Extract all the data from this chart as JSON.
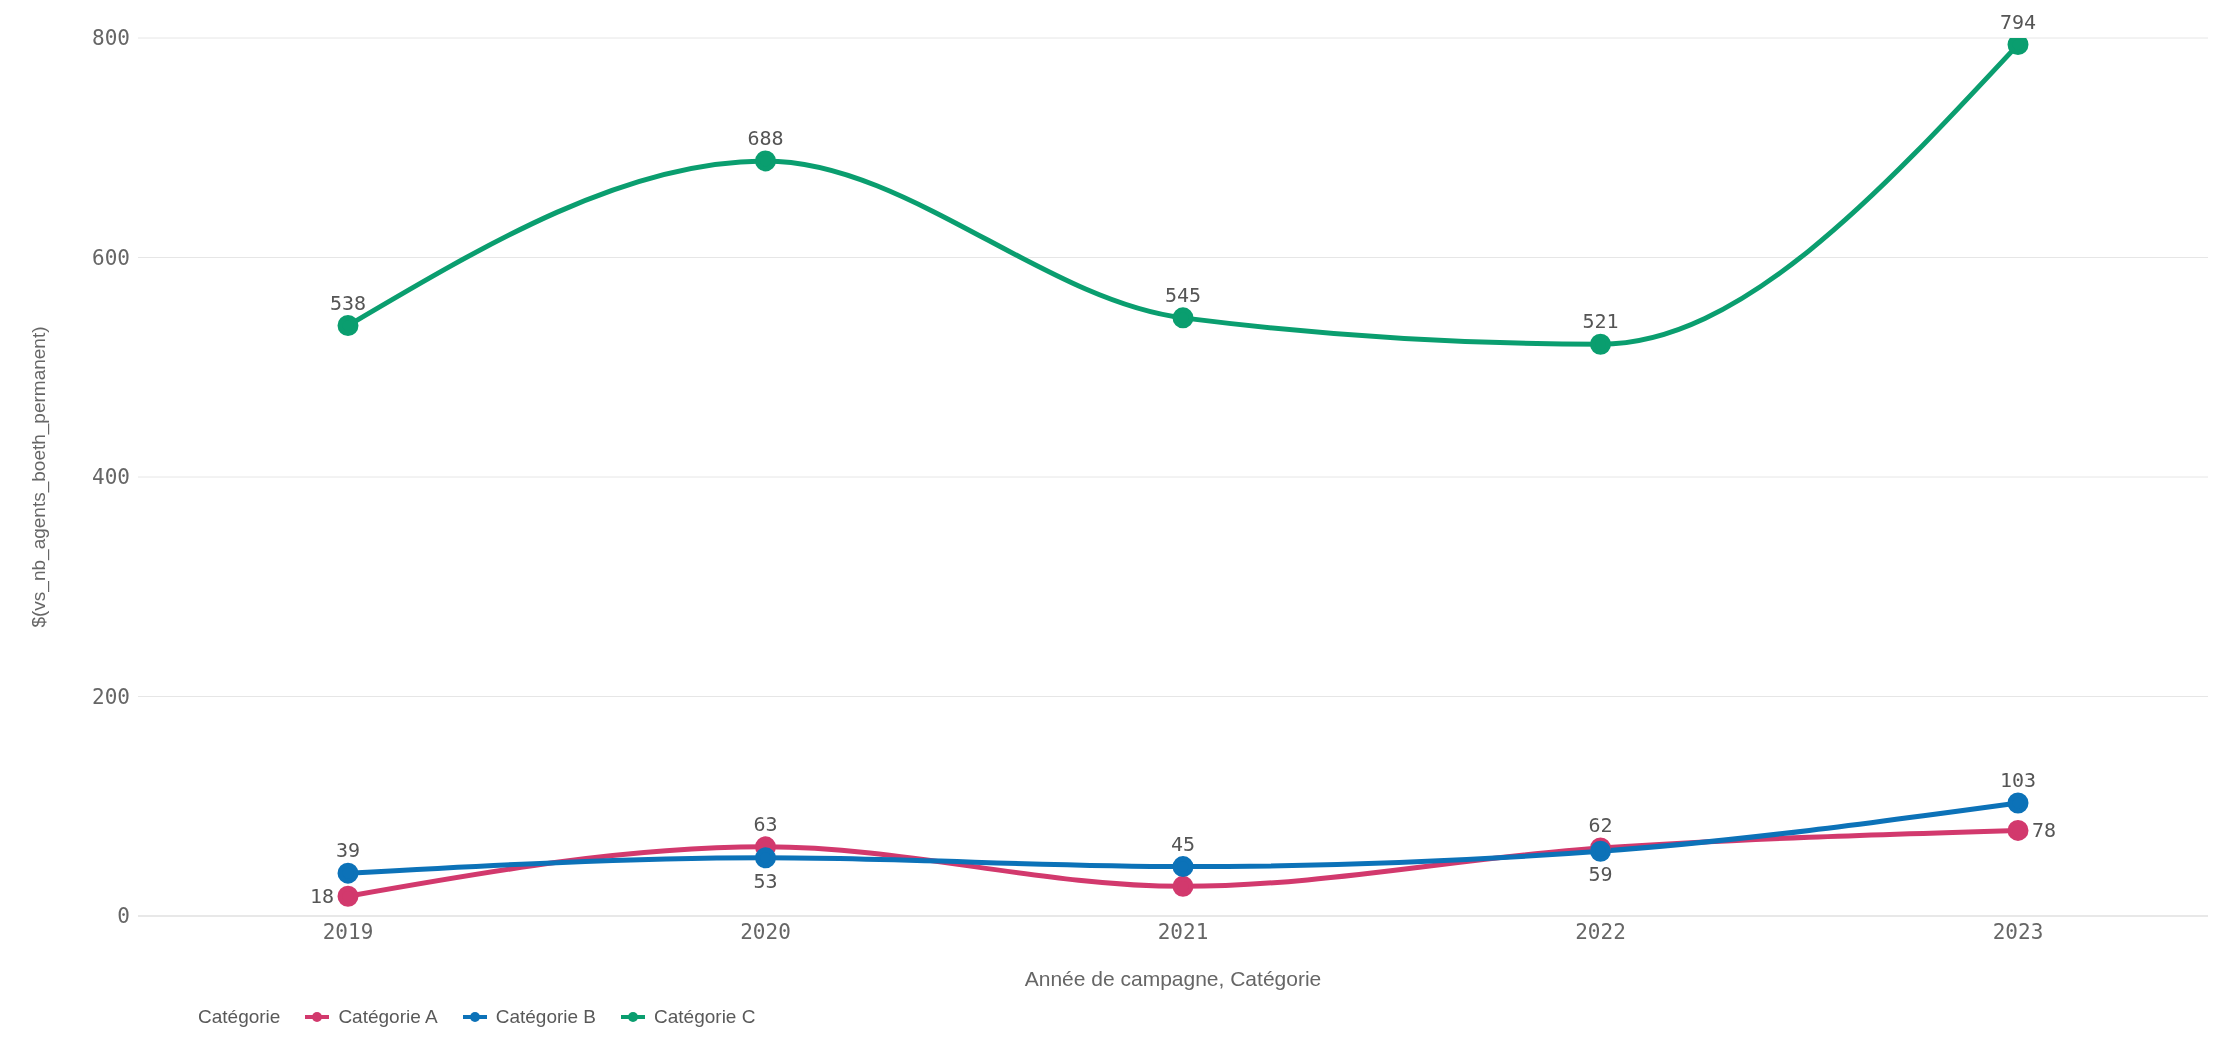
{
  "chart_data": {
    "type": "line",
    "xlabel": "Année de campagne, Catégorie",
    "ylabel": "$(vs_nb_agents_boeth_permanent)",
    "legend_title": "Catégorie",
    "categories": [
      "2019",
      "2020",
      "2021",
      "2022",
      "2023"
    ],
    "series": [
      {
        "name": "Catégorie A",
        "color": "#d2396d",
        "values": [
          18,
          63,
          27,
          62,
          78
        ],
        "value_labels": [
          "18",
          "63",
          null,
          "62",
          "78"
        ]
      },
      {
        "name": "Catégorie B",
        "color": "#0c72b8",
        "values": [
          39,
          53,
          45,
          59,
          103
        ],
        "value_labels": [
          "39",
          "53",
          "45",
          "59",
          "103"
        ]
      },
      {
        "name": "Catégorie C",
        "color": "#0a9e6f",
        "values": [
          538,
          688,
          545,
          521,
          794
        ],
        "value_labels": [
          "538",
          "688",
          "545",
          "521",
          "794"
        ]
      }
    ],
    "ylim": [
      0,
      800
    ],
    "yticks": [
      0,
      200,
      400,
      600,
      800
    ],
    "grid": "y",
    "legend": "bottom left",
    "marker": "circle",
    "line_style": "solid"
  }
}
